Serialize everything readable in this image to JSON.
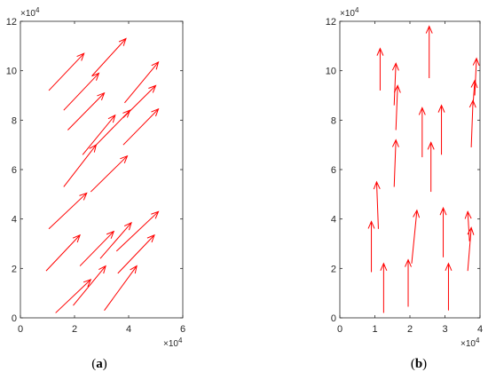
{
  "chart_data": [
    {
      "type": "quiver",
      "caption_open": "(",
      "caption_letter": "a",
      "caption_close": ")",
      "xlim": [
        0,
        60000
      ],
      "ylim": [
        0,
        120000
      ],
      "xticks": [
        0,
        2,
        4,
        6
      ],
      "yticks": [
        0,
        2,
        4,
        6,
        8,
        10,
        12
      ],
      "x_multiplier": "×10",
      "x_multiplier_exp": "4",
      "y_multiplier": "×10",
      "y_multiplier_exp": "4",
      "grid": false,
      "arrow_color": "#ff0000",
      "arrows": [
        {
          "x": 10500,
          "y": 92000,
          "u": 13000,
          "v": 15000
        },
        {
          "x": 16000,
          "y": 84000,
          "u": 13000,
          "v": 15000
        },
        {
          "x": 26500,
          "y": 98000,
          "u": 12500,
          "v": 15000
        },
        {
          "x": 17500,
          "y": 76000,
          "u": 13500,
          "v": 15000
        },
        {
          "x": 28000,
          "y": 70000,
          "u": 12500,
          "v": 14000
        },
        {
          "x": 38500,
          "y": 87000,
          "u": 12500,
          "v": 16500
        },
        {
          "x": 38000,
          "y": 81000,
          "u": 12000,
          "v": 13000
        },
        {
          "x": 23000,
          "y": 66000,
          "u": 12000,
          "v": 16000
        },
        {
          "x": 38000,
          "y": 70000,
          "u": 13000,
          "v": 14500
        },
        {
          "x": 16000,
          "y": 53000,
          "u": 12000,
          "v": 17000
        },
        {
          "x": 26000,
          "y": 51000,
          "u": 13500,
          "v": 14500
        },
        {
          "x": 10500,
          "y": 36000,
          "u": 14000,
          "v": 14500
        },
        {
          "x": 9500,
          "y": 19000,
          "u": 12500,
          "v": 14500
        },
        {
          "x": 22000,
          "y": 21000,
          "u": 12500,
          "v": 14000
        },
        {
          "x": 29500,
          "y": 24000,
          "u": 11500,
          "v": 14500
        },
        {
          "x": 35500,
          "y": 27000,
          "u": 15500,
          "v": 16000
        },
        {
          "x": 36000,
          "y": 18000,
          "u": 13500,
          "v": 15500
        },
        {
          "x": 13000,
          "y": 2000,
          "u": 13000,
          "v": 13500
        },
        {
          "x": 19500,
          "y": 5000,
          "u": 12000,
          "v": 16000
        },
        {
          "x": 31000,
          "y": 3000,
          "u": 12000,
          "v": 18000
        }
      ]
    },
    {
      "type": "quiver",
      "caption_open": "(",
      "caption_letter": "b",
      "caption_close": ")",
      "xlim": [
        0,
        40000
      ],
      "ylim": [
        0,
        120000
      ],
      "xticks": [
        0,
        1,
        2,
        3,
        4
      ],
      "yticks": [
        0,
        2,
        4,
        6,
        8,
        10,
        12
      ],
      "x_multiplier": "×10",
      "x_multiplier_exp": "4",
      "y_multiplier": "×10",
      "y_multiplier_exp": "4",
      "grid": false,
      "arrow_color": "#ff0000",
      "arrows": [
        {
          "x": 11500,
          "y": 92000,
          "u": 0,
          "v": 17000
        },
        {
          "x": 25500,
          "y": 97000,
          "u": 0,
          "v": 21000
        },
        {
          "x": 15500,
          "y": 86000,
          "u": 500,
          "v": 17000
        },
        {
          "x": 16000,
          "y": 76000,
          "u": 500,
          "v": 18000
        },
        {
          "x": 38500,
          "y": 90000,
          "u": 500,
          "v": 15000
        },
        {
          "x": 38000,
          "y": 86000,
          "u": 500,
          "v": 10000
        },
        {
          "x": 37500,
          "y": 69000,
          "u": 500,
          "v": 19000
        },
        {
          "x": 23500,
          "y": 65000,
          "u": 0,
          "v": 20000
        },
        {
          "x": 29000,
          "y": 66000,
          "u": 0,
          "v": 20000
        },
        {
          "x": 15500,
          "y": 53000,
          "u": 500,
          "v": 19000
        },
        {
          "x": 26000,
          "y": 51000,
          "u": 0,
          "v": 20000
        },
        {
          "x": 11000,
          "y": 36000,
          "u": -500,
          "v": 19000
        },
        {
          "x": 9000,
          "y": 18500,
          "u": 0,
          "v": 20500
        },
        {
          "x": 20500,
          "y": 22000,
          "u": 1500,
          "v": 21500
        },
        {
          "x": 29500,
          "y": 24500,
          "u": 0,
          "v": 20000
        },
        {
          "x": 36500,
          "y": 19000,
          "u": 1000,
          "v": 17500
        },
        {
          "x": 37000,
          "y": 31000,
          "u": -500,
          "v": 12000
        },
        {
          "x": 12500,
          "y": 2000,
          "u": 0,
          "v": 20000
        },
        {
          "x": 19500,
          "y": 4500,
          "u": 0,
          "v": 19000
        },
        {
          "x": 31000,
          "y": 3000,
          "u": 0,
          "v": 19000
        }
      ]
    }
  ]
}
